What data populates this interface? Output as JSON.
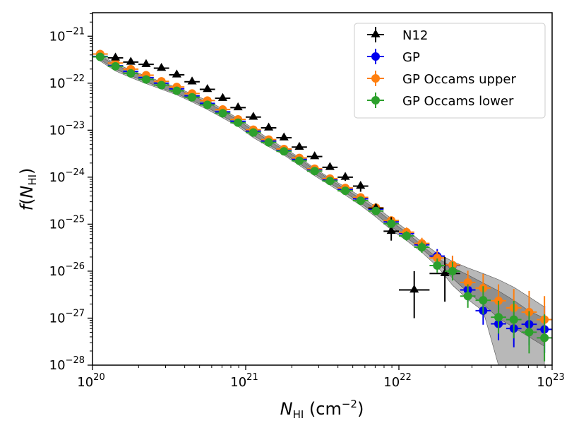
{
  "chart_data": {
    "type": "scatter",
    "xscale": "log",
    "yscale": "log",
    "xlim_exp": [
      20,
      23
    ],
    "ylim_exp": [
      -28,
      -20.5
    ],
    "x_ticks": [
      {
        "exp": 20,
        "base": "10",
        "sup": "20"
      },
      {
        "exp": 21,
        "base": "10",
        "sup": "21"
      },
      {
        "exp": 22,
        "base": "10",
        "sup": "22"
      },
      {
        "exp": 23,
        "base": "10",
        "sup": "23"
      }
    ],
    "y_ticks": [
      {
        "exp": -28,
        "base": "10",
        "sup": "−28"
      },
      {
        "exp": -27,
        "base": "10",
        "sup": "−27"
      },
      {
        "exp": -26,
        "base": "10",
        "sup": "−26"
      },
      {
        "exp": -25,
        "base": "10",
        "sup": "−25"
      },
      {
        "exp": -24,
        "base": "10",
        "sup": "−24"
      },
      {
        "exp": -23,
        "base": "10",
        "sup": "−23"
      },
      {
        "exp": -22,
        "base": "10",
        "sup": "−22"
      },
      {
        "exp": -21,
        "base": "10",
        "sup": "−21"
      }
    ],
    "xlabel": {
      "main": "N",
      "sub": "HI",
      "unit": " (cm",
      "unit_sup": "−2",
      "close": ")"
    },
    "ylabel": {
      "main": "f",
      "open": "(",
      "n": "N",
      "sub": "HI",
      "close": ")"
    },
    "legend_position": "top-right",
    "band": {
      "x": [
        20.05,
        20.15,
        20.25,
        20.35,
        20.45,
        20.55,
        20.65,
        20.75,
        20.85,
        20.95,
        21.05,
        21.15,
        21.25,
        21.35,
        21.45,
        21.55,
        21.65,
        21.75,
        21.85,
        21.95,
        22.05,
        22.15,
        22.25,
        22.35,
        22.45,
        22.55,
        22.65,
        22.75,
        22.85,
        22.95
      ],
      "outer_upper": [
        -21.4,
        -21.58,
        -21.72,
        -21.85,
        -21.97,
        -22.09,
        -22.23,
        -22.37,
        -22.55,
        -22.75,
        -22.97,
        -23.18,
        -23.38,
        -23.58,
        -23.81,
        -24.02,
        -24.21,
        -24.41,
        -24.63,
        -24.88,
        -25.12,
        -25.38,
        -25.62,
        -25.79,
        -25.93,
        -26.05,
        -26.18,
        -26.34,
        -26.55,
        -26.76
      ],
      "outer_lower": [
        -21.53,
        -21.74,
        -21.88,
        -22.01,
        -22.13,
        -22.25,
        -22.4,
        -22.56,
        -22.74,
        -22.92,
        -23.16,
        -23.35,
        -23.53,
        -23.75,
        -23.97,
        -24.17,
        -24.38,
        -24.6,
        -24.85,
        -25.12,
        -25.35,
        -25.6,
        -25.9,
        -26.3,
        -26.6,
        -26.85,
        -28,
        -28,
        -28,
        -28
      ],
      "inner_upper": [
        -21.43,
        -21.61,
        -21.75,
        -21.88,
        -22.0,
        -22.12,
        -22.26,
        -22.41,
        -22.59,
        -22.79,
        -23.01,
        -23.22,
        -23.42,
        -23.61,
        -23.84,
        -24.05,
        -24.25,
        -24.46,
        -24.68,
        -24.94,
        -25.18,
        -25.45,
        -25.72,
        -25.92,
        -26.08,
        -26.25,
        -26.42,
        -26.62,
        -26.85,
        -27.0
      ],
      "inner_lower": [
        -21.5,
        -21.7,
        -21.84,
        -21.97,
        -22.1,
        -22.22,
        -22.37,
        -22.52,
        -22.7,
        -22.88,
        -23.11,
        -23.31,
        -23.5,
        -23.71,
        -23.93,
        -24.13,
        -24.33,
        -24.55,
        -24.79,
        -25.05,
        -25.29,
        -25.53,
        -25.8,
        -26.15,
        -26.45,
        -26.7,
        -27.0,
        -27.2,
        -27.4,
        -27.6
      ]
    },
    "series": [
      {
        "name": "N12",
        "color": "#000000",
        "marker": "triangle",
        "x": [
          20.15,
          20.25,
          20.35,
          20.45,
          20.55,
          20.65,
          20.75,
          20.85,
          20.95,
          21.05,
          21.15,
          21.25,
          21.35,
          21.45,
          21.55,
          21.65,
          21.75,
          21.85,
          21.95,
          22.1,
          22.3
        ],
        "y": [
          -21.46,
          -21.55,
          -21.6,
          -21.68,
          -21.82,
          -21.97,
          -22.13,
          -22.32,
          -22.52,
          -22.72,
          -22.95,
          -23.16,
          -23.36,
          -23.56,
          -23.79,
          -24.0,
          -24.19,
          -24.66,
          -25.15,
          -26.4,
          -26.05
        ],
        "yerr_lo": [
          0.05,
          0.05,
          0.05,
          0.05,
          0.05,
          0.05,
          0.05,
          0.05,
          0.05,
          0.05,
          0.05,
          0.05,
          0.05,
          0.05,
          0.05,
          0.08,
          0.12,
          0.15,
          0.2,
          0.6,
          0.6
        ],
        "yerr_hi": [
          0.05,
          0.05,
          0.05,
          0.05,
          0.05,
          0.05,
          0.05,
          0.05,
          0.05,
          0.05,
          0.05,
          0.05,
          0.05,
          0.05,
          0.05,
          0.05,
          0.05,
          0.08,
          0.3,
          0.4,
          0.35
        ],
        "xerr": [
          0.05,
          0.05,
          0.05,
          0.05,
          0.05,
          0.05,
          0.05,
          0.05,
          0.05,
          0.05,
          0.05,
          0.05,
          0.05,
          0.05,
          0.05,
          0.05,
          0.05,
          0.05,
          0.05,
          0.1,
          0.1
        ]
      },
      {
        "name": "GP",
        "color": "#0000ee",
        "marker": "circle",
        "x": [
          20.05,
          20.15,
          20.25,
          20.35,
          20.45,
          20.55,
          20.65,
          20.75,
          20.85,
          20.95,
          21.05,
          21.15,
          21.25,
          21.35,
          21.45,
          21.55,
          21.65,
          21.75,
          21.85,
          21.95,
          22.05,
          22.15,
          22.25,
          22.35,
          22.45,
          22.55,
          22.65,
          22.75,
          22.85,
          22.95
        ],
        "y": [
          -21.43,
          -21.63,
          -21.75,
          -21.88,
          -22.0,
          -22.12,
          -22.27,
          -22.43,
          -22.61,
          -22.81,
          -23.02,
          -23.23,
          -23.42,
          -23.62,
          -23.84,
          -24.06,
          -24.26,
          -24.46,
          -24.68,
          -24.95,
          -25.2,
          -25.44,
          -25.68,
          -25.88,
          -26.4,
          -26.84,
          -27.12,
          -27.22,
          -27.13,
          -27.24
        ],
        "yerr_lo": [
          0.03,
          0.03,
          0.03,
          0.03,
          0.03,
          0.03,
          0.03,
          0.03,
          0.03,
          0.03,
          0.03,
          0.03,
          0.03,
          0.03,
          0.03,
          0.03,
          0.04,
          0.05,
          0.06,
          0.08,
          0.1,
          0.12,
          0.15,
          0.2,
          0.25,
          0.3,
          0.35,
          0.4,
          0.45,
          0.5
        ],
        "yerr_hi": [
          0.03,
          0.03,
          0.03,
          0.03,
          0.03,
          0.03,
          0.03,
          0.03,
          0.03,
          0.03,
          0.03,
          0.03,
          0.03,
          0.03,
          0.03,
          0.03,
          0.04,
          0.05,
          0.06,
          0.08,
          0.1,
          0.12,
          0.15,
          0.2,
          0.25,
          0.3,
          0.35,
          0.4,
          0.45,
          0.5
        ],
        "xerr": [
          0.05,
          0.05,
          0.05,
          0.05,
          0.05,
          0.05,
          0.05,
          0.05,
          0.05,
          0.05,
          0.05,
          0.05,
          0.05,
          0.05,
          0.05,
          0.05,
          0.05,
          0.05,
          0.05,
          0.05,
          0.05,
          0.05,
          0.05,
          0.05,
          0.05,
          0.05,
          0.05,
          0.05,
          0.05,
          0.05
        ]
      },
      {
        "name": "GP Occams upper",
        "color": "#ff7f0e",
        "marker": "circle",
        "x": [
          20.05,
          20.15,
          20.25,
          20.35,
          20.45,
          20.55,
          20.65,
          20.75,
          20.85,
          20.95,
          21.05,
          21.15,
          21.25,
          21.35,
          21.45,
          21.55,
          21.65,
          21.75,
          21.85,
          21.95,
          22.05,
          22.15,
          22.25,
          22.35,
          22.45,
          22.55,
          22.65,
          22.75,
          22.85,
          22.95
        ],
        "y": [
          -21.38,
          -21.57,
          -21.7,
          -21.83,
          -21.96,
          -22.08,
          -22.22,
          -22.37,
          -22.56,
          -22.77,
          -22.99,
          -23.2,
          -23.4,
          -23.59,
          -23.82,
          -24.03,
          -24.23,
          -24.43,
          -24.65,
          -24.92,
          -25.17,
          -25.41,
          -25.72,
          -25.87,
          -26.24,
          -26.36,
          -26.63,
          -26.78,
          -26.87,
          -27.03
        ],
        "yerr_lo": [
          0.03,
          0.03,
          0.03,
          0.03,
          0.03,
          0.03,
          0.03,
          0.03,
          0.03,
          0.03,
          0.03,
          0.03,
          0.03,
          0.03,
          0.03,
          0.03,
          0.04,
          0.05,
          0.06,
          0.08,
          0.1,
          0.12,
          0.15,
          0.2,
          0.25,
          0.3,
          0.35,
          0.4,
          0.45,
          0.5
        ],
        "yerr_hi": [
          0.03,
          0.03,
          0.03,
          0.03,
          0.03,
          0.03,
          0.03,
          0.03,
          0.03,
          0.03,
          0.03,
          0.03,
          0.03,
          0.03,
          0.03,
          0.03,
          0.04,
          0.05,
          0.06,
          0.08,
          0.1,
          0.12,
          0.15,
          0.2,
          0.25,
          0.3,
          0.35,
          0.4,
          0.45,
          0.5
        ],
        "xerr": [
          0.05,
          0.05,
          0.05,
          0.05,
          0.05,
          0.05,
          0.05,
          0.05,
          0.05,
          0.05,
          0.05,
          0.05,
          0.05,
          0.05,
          0.05,
          0.05,
          0.05,
          0.05,
          0.05,
          0.05,
          0.05,
          0.05,
          0.05,
          0.05,
          0.05,
          0.05,
          0.05,
          0.05,
          0.05,
          0.05
        ]
      },
      {
        "name": "GP Occams lower",
        "color": "#2ca02c",
        "marker": "circle",
        "x": [
          20.05,
          20.15,
          20.25,
          20.35,
          20.45,
          20.55,
          20.65,
          20.75,
          20.85,
          20.95,
          21.05,
          21.15,
          21.25,
          21.35,
          21.45,
          21.55,
          21.65,
          21.75,
          21.85,
          21.95,
          22.05,
          22.15,
          22.25,
          22.35,
          22.45,
          22.55,
          22.65,
          22.75,
          22.85,
          22.95
        ],
        "y": [
          -21.44,
          -21.64,
          -21.79,
          -21.92,
          -22.04,
          -22.16,
          -22.3,
          -22.46,
          -22.64,
          -22.84,
          -23.05,
          -23.26,
          -23.45,
          -23.65,
          -23.87,
          -24.08,
          -24.29,
          -24.5,
          -24.72,
          -24.99,
          -25.25,
          -25.49,
          -25.88,
          -26.0,
          -26.53,
          -26.62,
          -26.98,
          -27.03,
          -27.3,
          -27.42
        ],
        "yerr_lo": [
          0.03,
          0.03,
          0.03,
          0.03,
          0.03,
          0.03,
          0.03,
          0.03,
          0.03,
          0.03,
          0.03,
          0.03,
          0.03,
          0.03,
          0.03,
          0.03,
          0.04,
          0.05,
          0.06,
          0.08,
          0.1,
          0.12,
          0.15,
          0.2,
          0.25,
          0.3,
          0.35,
          0.4,
          0.45,
          0.5
        ],
        "yerr_hi": [
          0.03,
          0.03,
          0.03,
          0.03,
          0.03,
          0.03,
          0.03,
          0.03,
          0.03,
          0.03,
          0.03,
          0.03,
          0.03,
          0.03,
          0.03,
          0.03,
          0.04,
          0.05,
          0.06,
          0.08,
          0.1,
          0.12,
          0.15,
          0.2,
          0.25,
          0.3,
          0.35,
          0.4,
          0.45,
          0.5
        ],
        "xerr": [
          0.05,
          0.05,
          0.05,
          0.05,
          0.05,
          0.05,
          0.05,
          0.05,
          0.05,
          0.05,
          0.05,
          0.05,
          0.05,
          0.05,
          0.05,
          0.05,
          0.05,
          0.05,
          0.05,
          0.05,
          0.05,
          0.05,
          0.05,
          0.05,
          0.05,
          0.05,
          0.05,
          0.05,
          0.05,
          0.05
        ]
      }
    ]
  }
}
